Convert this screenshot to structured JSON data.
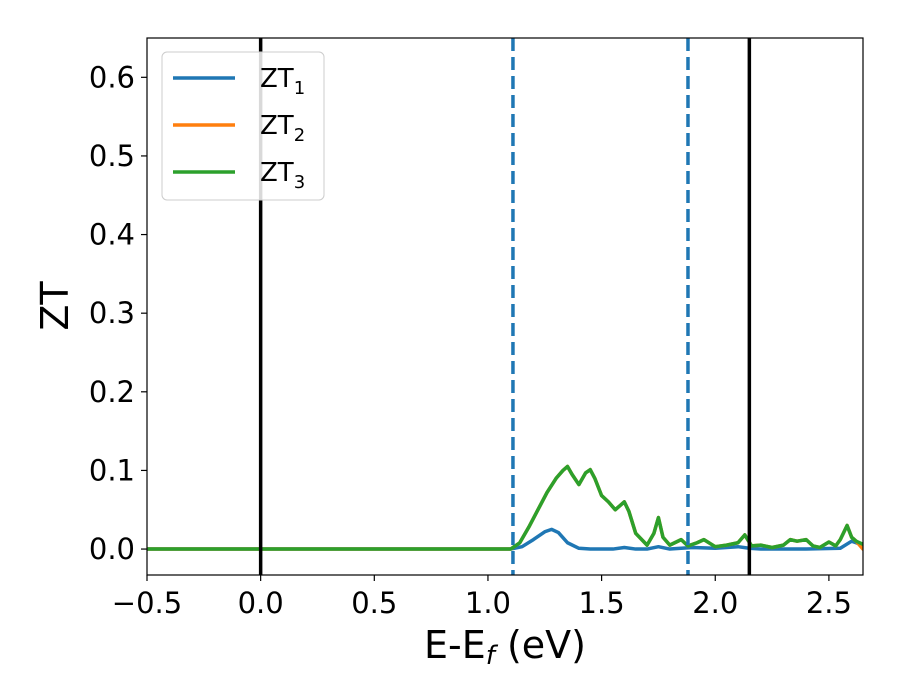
{
  "chart_data": {
    "type": "line",
    "xlabel": "E-E",
    "xlabel_sub": "f",
    "xlabel_unit": " (eV)",
    "ylabel": "ZT",
    "xlim": [
      -0.5,
      2.65
    ],
    "ylim": [
      -0.033,
      0.65
    ],
    "xticks": [
      -0.5,
      0.0,
      0.5,
      1.0,
      1.5,
      2.0,
      2.5
    ],
    "xtick_labels": [
      "−0.5",
      "0.0",
      "0.5",
      "1.0",
      "1.5",
      "2.0",
      "2.5"
    ],
    "yticks": [
      0.0,
      0.1,
      0.2,
      0.3,
      0.4,
      0.5,
      0.6
    ],
    "ytick_labels": [
      "0.0",
      "0.1",
      "0.2",
      "0.3",
      "0.4",
      "0.5",
      "0.6"
    ],
    "grid": false,
    "legend_position": "top-left",
    "vlines": [
      {
        "x": 0.0,
        "style": "solid",
        "color": "#000000"
      },
      {
        "x": 2.15,
        "style": "solid",
        "color": "#000000"
      },
      {
        "x": 1.11,
        "style": "dashed",
        "color": "#1f77b4"
      },
      {
        "x": 1.88,
        "style": "dashed",
        "color": "#1f77b4"
      }
    ],
    "series": [
      {
        "name": "ZT",
        "name_sub": "1",
        "color": "#1f77b4",
        "x": [
          -0.5,
          1.1,
          1.15,
          1.2,
          1.25,
          1.28,
          1.31,
          1.35,
          1.4,
          1.45,
          1.5,
          1.55,
          1.6,
          1.65,
          1.7,
          1.75,
          1.8,
          1.9,
          2.0,
          2.1,
          2.15,
          2.2,
          2.4,
          2.55,
          2.6,
          2.65
        ],
        "y": [
          0.0,
          0.0,
          0.003,
          0.012,
          0.022,
          0.025,
          0.021,
          0.008,
          0.001,
          0.0,
          0.0,
          0.0,
          0.002,
          0.0,
          0.0,
          0.003,
          0.0,
          0.002,
          0.001,
          0.003,
          0.001,
          0.0,
          0.0,
          0.001,
          0.01,
          0.005
        ]
      },
      {
        "name": "ZT",
        "name_sub": "2",
        "color": "#ff7f0e",
        "x": [
          -0.5,
          1.1,
          1.14,
          1.18,
          1.22,
          1.26,
          1.3,
          1.33,
          1.35,
          1.37,
          1.4,
          1.43,
          1.45,
          1.47,
          1.5,
          1.53,
          1.56,
          1.58,
          1.6,
          1.62,
          1.65,
          1.7,
          1.73,
          1.75,
          1.77,
          1.8,
          1.85,
          1.88,
          1.92,
          1.95,
          2.0,
          2.05,
          2.1,
          2.13,
          2.16,
          2.2,
          2.25,
          2.3,
          2.33,
          2.36,
          2.4,
          2.43,
          2.46,
          2.5,
          2.53,
          2.55,
          2.58,
          2.6,
          2.62,
          2.65
        ],
        "y": [
          0.0,
          0.0,
          0.008,
          0.028,
          0.05,
          0.072,
          0.09,
          0.1,
          0.105,
          0.095,
          0.082,
          0.097,
          0.101,
          0.09,
          0.068,
          0.06,
          0.05,
          0.055,
          0.06,
          0.048,
          0.02,
          0.005,
          0.02,
          0.04,
          0.015,
          0.005,
          0.012,
          0.004,
          0.008,
          0.012,
          0.003,
          0.005,
          0.008,
          0.018,
          0.004,
          0.005,
          0.002,
          0.005,
          0.012,
          0.01,
          0.012,
          0.004,
          0.002,
          0.009,
          0.004,
          0.012,
          0.03,
          0.015,
          0.01,
          0.0
        ]
      },
      {
        "name": "ZT",
        "name_sub": "3",
        "color": "#2ca02c",
        "x": [
          -0.5,
          1.1,
          1.14,
          1.18,
          1.22,
          1.26,
          1.3,
          1.33,
          1.35,
          1.37,
          1.4,
          1.43,
          1.45,
          1.47,
          1.5,
          1.53,
          1.56,
          1.58,
          1.6,
          1.62,
          1.65,
          1.7,
          1.73,
          1.75,
          1.77,
          1.8,
          1.85,
          1.88,
          1.92,
          1.95,
          2.0,
          2.05,
          2.1,
          2.13,
          2.16,
          2.2,
          2.25,
          2.3,
          2.33,
          2.36,
          2.4,
          2.43,
          2.46,
          2.5,
          2.53,
          2.55,
          2.58,
          2.6,
          2.62,
          2.65
        ],
        "y": [
          0.0,
          0.0,
          0.008,
          0.028,
          0.05,
          0.072,
          0.09,
          0.1,
          0.105,
          0.095,
          0.082,
          0.097,
          0.101,
          0.09,
          0.068,
          0.06,
          0.05,
          0.055,
          0.06,
          0.048,
          0.02,
          0.005,
          0.02,
          0.04,
          0.015,
          0.005,
          0.012,
          0.004,
          0.008,
          0.012,
          0.003,
          0.005,
          0.008,
          0.018,
          0.004,
          0.005,
          0.002,
          0.005,
          0.012,
          0.01,
          0.012,
          0.004,
          0.002,
          0.009,
          0.004,
          0.012,
          0.03,
          0.015,
          0.01,
          0.006
        ]
      }
    ]
  }
}
